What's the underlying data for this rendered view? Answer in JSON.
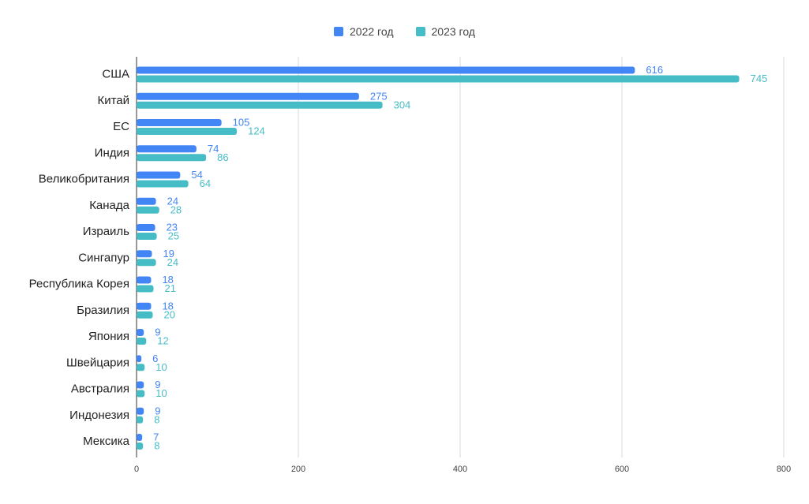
{
  "chart_data": {
    "type": "bar",
    "orientation": "horizontal",
    "categories": [
      "США",
      "Китай",
      "ЕС",
      "Индия",
      "Великобритания",
      "Канада",
      "Израиль",
      "Сингапур",
      "Республика Корея",
      "Бразилия",
      "Япония",
      "Швейцария",
      "Австралия",
      "Индонезия",
      "Мексика"
    ],
    "series": [
      {
        "name": "2022 год",
        "color": "#4285f4",
        "values": [
          616,
          275,
          105,
          74,
          54,
          24,
          23,
          19,
          18,
          18,
          9,
          6,
          9,
          9,
          7
        ]
      },
      {
        "name": "2023 год",
        "color": "#46bdc6",
        "values": [
          745,
          304,
          124,
          86,
          64,
          28,
          25,
          24,
          21,
          20,
          12,
          10,
          10,
          8,
          8
        ]
      }
    ],
    "xlim": [
      0,
      800
    ],
    "xticks": [
      "0",
      "200",
      "400",
      "600",
      "800"
    ],
    "grid": "vertical",
    "legend_position": "top",
    "title": "",
    "xlabel": "",
    "ylabel": ""
  }
}
